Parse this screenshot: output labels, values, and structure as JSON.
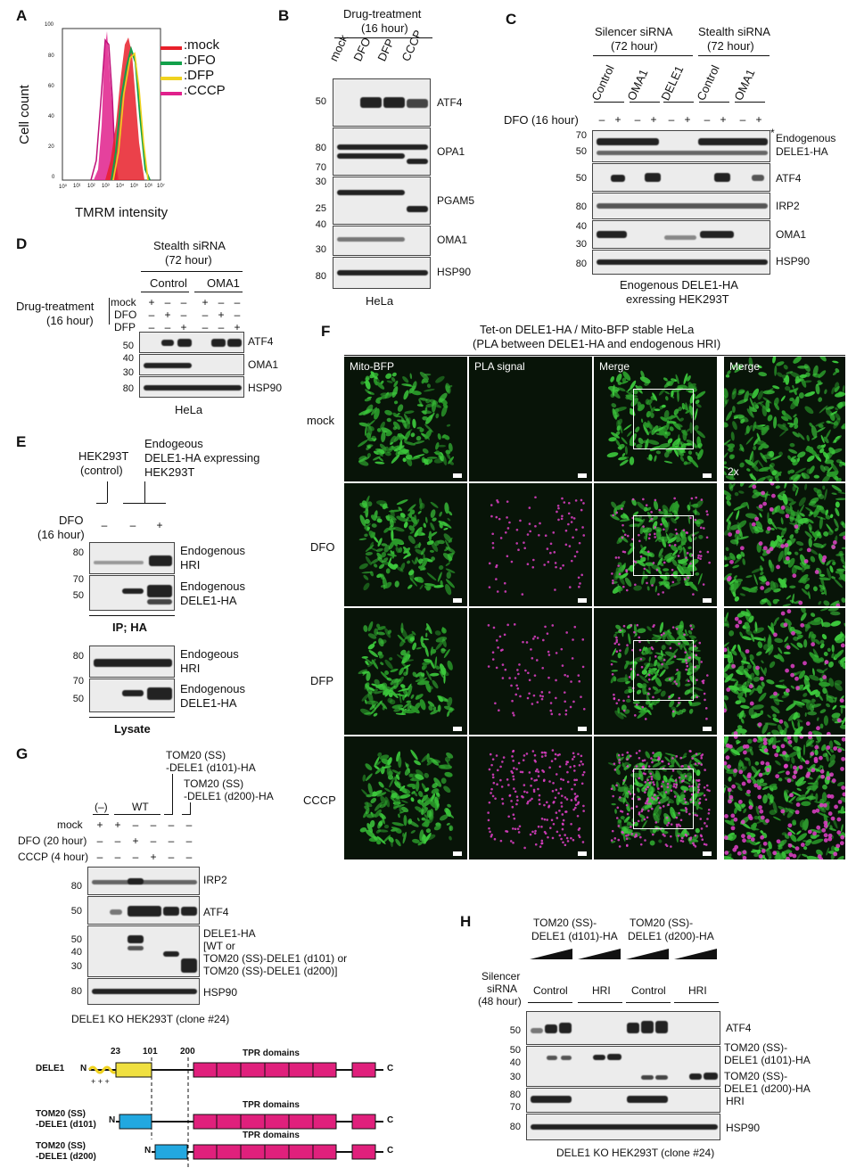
{
  "panels": {
    "A": {
      "label": "A",
      "ylabel": "Cell count",
      "xlabel": "TMRM intensity",
      "yticks": [
        "0",
        "20",
        "40",
        "60",
        "80",
        "100"
      ],
      "xticks": [
        "10⁰",
        "10¹",
        "10²",
        "10³",
        "10⁴",
        "10⁵",
        "10⁶",
        "10⁷"
      ],
      "legend": [
        {
          "name": ":mock",
          "color": "#e8202a"
        },
        {
          "name": ":DFO",
          "color": "#12a04a"
        },
        {
          "name": ":DFP",
          "color": "#f0d21e"
        },
        {
          "name": ":CCCP",
          "color": "#e0208c"
        }
      ]
    },
    "B": {
      "label": "B",
      "header": "Drug-treatment",
      "subheader": "(16 hour)",
      "lanes": [
        "mock",
        "DFO",
        "DFP",
        "CCCP"
      ],
      "rows": [
        {
          "name": "ATF4",
          "mw": [
            "50"
          ]
        },
        {
          "name": "OPA1",
          "mw": [
            "80",
            "70"
          ]
        },
        {
          "name": "PGAM5",
          "mw": [
            "30",
            "25"
          ]
        },
        {
          "name": "OMA1",
          "mw": [
            "40",
            "30"
          ]
        },
        {
          "name": "HSP90",
          "mw": [
            "80"
          ]
        }
      ],
      "footer": "HeLa"
    },
    "C": {
      "label": "C",
      "group1": "Silencer siRNA",
      "group1_sub": "(72 hour)",
      "group2": "Stealth siRNA",
      "group2_sub": "(72 hour)",
      "lanes": [
        "Control",
        "OMA1",
        "DELE1",
        "Control",
        "OMA1"
      ],
      "dfo_label": "DFO (16 hour)",
      "pm": [
        "–",
        "+",
        "–",
        "+",
        "–",
        "+",
        "–",
        "+",
        "–",
        "+"
      ],
      "rows": [
        {
          "name": "Endogenous\nDELE1-HA",
          "mw": [
            "70",
            "50"
          ]
        },
        {
          "name": "ATF4",
          "mw": [
            "50"
          ]
        },
        {
          "name": "IRP2",
          "mw": [
            "80"
          ]
        },
        {
          "name": "OMA1",
          "mw": [
            "40",
            "30"
          ]
        },
        {
          "name": "HSP90",
          "mw": [
            "80"
          ]
        }
      ],
      "star": "*",
      "footer1": "Enogenous DELE1-HA",
      "footer2": "exressing HEK293T"
    },
    "D": {
      "label": "D",
      "header": "Stealth siRNA",
      "subheader": "(72 hour)",
      "groups": [
        "Control",
        "OMA1"
      ],
      "cond_label": "Drug-treatment",
      "cond_sub": "(16 hour)",
      "conds": [
        "mock",
        "DFO",
        "DFP"
      ],
      "pm": [
        [
          "+",
          "–",
          "–",
          "+",
          "–",
          "–"
        ],
        [
          "–",
          "+",
          "–",
          "–",
          "+",
          "–"
        ],
        [
          "–",
          "–",
          "+",
          "–",
          "–",
          "+"
        ]
      ],
      "rows": [
        {
          "name": "ATF4",
          "mw": [
            "50"
          ]
        },
        {
          "name": "OMA1",
          "mw": [
            "40",
            "30"
          ]
        },
        {
          "name": "HSP90",
          "mw": [
            "80"
          ]
        }
      ],
      "footer": "HeLa"
    },
    "E": {
      "label": "E",
      "ctrl": "HEK293T",
      "ctrl_sub": "(control)",
      "expr1": "Endogeous",
      "expr2": "DELE1-HA expressing",
      "expr3": "HEK293T",
      "dfo": "DFO",
      "dfo_sub": "(16 hour)",
      "pm": [
        "–",
        "–",
        "+"
      ],
      "ip_rows": [
        {
          "name": "Endogenous\nHRI",
          "mw": [
            "80"
          ]
        },
        {
          "name": "Endogenous\nDELE1-HA",
          "mw": [
            "70",
            "50"
          ]
        }
      ],
      "ip_label": "IP; HA",
      "lys_rows": [
        {
          "name": "Endogeous\nHRI",
          "mw": [
            "80"
          ]
        },
        {
          "name": "Endogenous\nDELE1-HA",
          "mw": [
            "70",
            "50"
          ]
        }
      ],
      "lys_label": "Lysate"
    },
    "F": {
      "label": "F",
      "title1": "Tet-on DELE1-HA / Mito-BFP stable HeLa",
      "title2": "(PLA between DELE1-HA and endogenous HRI)",
      "cols": [
        "Mito-BFP",
        "PLA signal",
        "Merge",
        "Merge"
      ],
      "rows": [
        "mock",
        "DFO",
        "DFP",
        "CCCP"
      ],
      "zoom": "2x"
    },
    "G": {
      "label": "G",
      "c1": "TOM20 (SS)",
      "c1b": "-DELE1 (d101)-HA",
      "c2": "TOM20 (SS)",
      "c2b": "-DELE1 (d200)-HA",
      "neg": "(–)",
      "wt": "WT",
      "conds": [
        "mock",
        "DFO (20 hour)",
        "CCCP (4 hour)"
      ],
      "pm": [
        [
          "+",
          "+",
          "–",
          "–",
          "–",
          "–"
        ],
        [
          "–",
          "–",
          "+",
          "–",
          "–",
          "–"
        ],
        [
          "–",
          "–",
          "–",
          "+",
          "–",
          "–"
        ]
      ],
      "rows": [
        {
          "name": "IRP2",
          "mw": [
            "80"
          ]
        },
        {
          "name": "ATF4",
          "mw": [
            "50"
          ]
        },
        {
          "name": "DELE1-HA\n[WT or\nTOM20 (SS)-DELE1 (d101) or\nTOM20 (SS)-DELE1 (d200)]",
          "mw": [
            "50",
            "40",
            "30"
          ]
        },
        {
          "name": "HSP90",
          "mw": [
            "80"
          ]
        }
      ],
      "footer": "DELE1 KO HEK293T (clone #24)",
      "schema": {
        "pos": [
          "23",
          "101",
          "200"
        ],
        "tpr": "TPR domains",
        "n": "N",
        "c": "C",
        "plus": "+ + +",
        "constructs": [
          "DELE1",
          "TOM20 (SS)\n-DELE1 (d101)",
          "TOM20 (SS)\n-DELE1 (d200)"
        ]
      }
    },
    "H": {
      "label": "H",
      "c1": "TOM20 (SS)-",
      "c1b": "DELE1 (d101)-HA",
      "c2": "TOM20 (SS)-",
      "c2b": "DELE1 (d200)-HA",
      "sirna": "Silencer",
      "sirna2": "siRNA",
      "sirna3": "(48 hour)",
      "groups": [
        "Control",
        "HRI",
        "Control",
        "HRI"
      ],
      "rows": [
        {
          "name": "ATF4",
          "mw": [
            "50"
          ]
        },
        {
          "name": "TOM20 (SS)-\nDELE1 (d101)-HA",
          "mw": [
            "50",
            "40",
            "30"
          ]
        },
        {
          "name": "TOM20 (SS)-\nDELE1 (d200)-HA",
          "mw": []
        },
        {
          "name": "HRI",
          "mw": [
            "80",
            "70"
          ]
        },
        {
          "name": "HSP90",
          "mw": [
            "80"
          ]
        }
      ],
      "footer": "DELE1 KO HEK293T (clone #24)"
    }
  }
}
